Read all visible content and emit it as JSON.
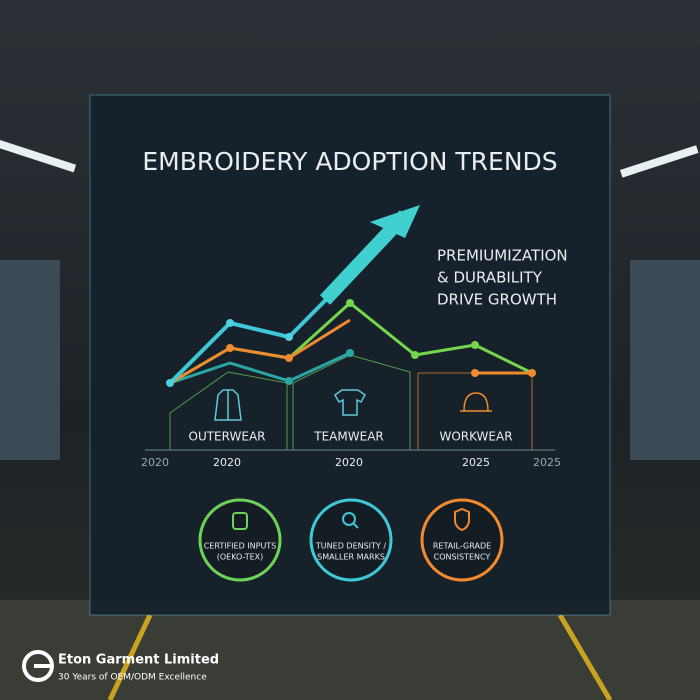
{
  "title": "EMBROIDERY ADOPTION TRENDS",
  "callout": [
    "PREMIUMIZATION",
    "& DURABILITY",
    "DRIVE GROWTH"
  ],
  "segments": [
    "OUTERWEAR",
    "TEAMWEAR",
    "WORKWEAR"
  ],
  "years": [
    "2020",
    "2020",
    "2020",
    "2025",
    "2025"
  ],
  "badges": [
    [
      "CERTIFIED INPUTS",
      "(OEKO-TEX)"
    ],
    [
      "TUNED DENSITY /",
      "SMALLER MARKS"
    ],
    [
      "RETAIL-GRADE",
      "CONSISTENCY"
    ]
  ],
  "brand": {
    "name": "Eton Garment Limited",
    "tagline": "30 Years of OEM/ODM Excellence"
  }
}
